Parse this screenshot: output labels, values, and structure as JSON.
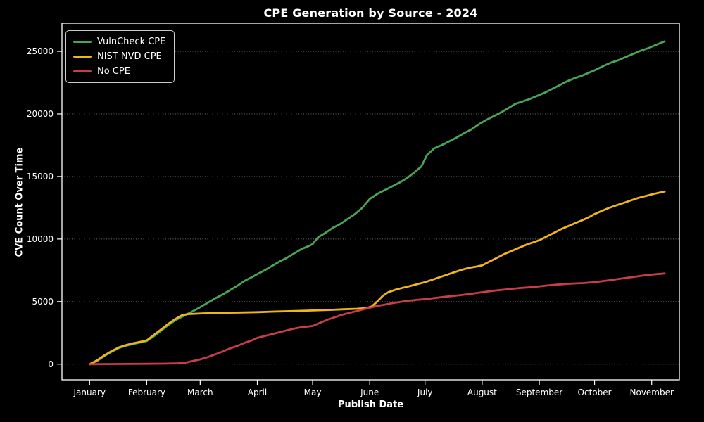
{
  "figure": {
    "background": "#000000",
    "text_color": "#ffffff",
    "spine_color": "#ffffff",
    "grid_color": "rgba(255,255,255,0.45)"
  },
  "chart_data": {
    "type": "line",
    "title": "CPE Generation by Source - 2024",
    "xlabel": "Publish Date",
    "ylabel": "CVE Count Over Time",
    "legend_position": "top-left",
    "grid": "horizontal-dotted",
    "x_unit": "day_of_year_2024",
    "xlim": [
      -15,
      320
    ],
    "ylim": [
      -1250,
      27250
    ],
    "y_ticks": [
      0,
      5000,
      10000,
      15000,
      20000,
      25000
    ],
    "x_ticks": [
      {
        "label": "January",
        "day": 0
      },
      {
        "label": "February",
        "day": 31
      },
      {
        "label": "March",
        "day": 60
      },
      {
        "label": "April",
        "day": 91
      },
      {
        "label": "May",
        "day": 121
      },
      {
        "label": "June",
        "day": 152
      },
      {
        "label": "July",
        "day": 182
      },
      {
        "label": "August",
        "day": 213
      },
      {
        "label": "September",
        "day": 244
      },
      {
        "label": "October",
        "day": 274
      },
      {
        "label": "November",
        "day": 305
      }
    ],
    "series": [
      {
        "name": "VulnCheck CPE",
        "color": "#48a456",
        "final_value": 25800,
        "points": [
          [
            0,
            0
          ],
          [
            4,
            250
          ],
          [
            8,
            650
          ],
          [
            12,
            1000
          ],
          [
            16,
            1300
          ],
          [
            20,
            1480
          ],
          [
            24,
            1620
          ],
          [
            28,
            1750
          ],
          [
            31,
            1850
          ],
          [
            35,
            2250
          ],
          [
            39,
            2700
          ],
          [
            43,
            3150
          ],
          [
            47,
            3550
          ],
          [
            51,
            3850
          ],
          [
            55,
            4150
          ],
          [
            60,
            4550
          ],
          [
            64,
            4900
          ],
          [
            68,
            5250
          ],
          [
            72,
            5550
          ],
          [
            76,
            5900
          ],
          [
            80,
            6250
          ],
          [
            84,
            6650
          ],
          [
            88,
            6950
          ],
          [
            91,
            7200
          ],
          [
            95,
            7500
          ],
          [
            99,
            7850
          ],
          [
            103,
            8200
          ],
          [
            107,
            8500
          ],
          [
            111,
            8850
          ],
          [
            115,
            9200
          ],
          [
            119,
            9450
          ],
          [
            121,
            9600
          ],
          [
            124,
            10150
          ],
          [
            128,
            10500
          ],
          [
            132,
            10900
          ],
          [
            136,
            11200
          ],
          [
            140,
            11600
          ],
          [
            144,
            12000
          ],
          [
            148,
            12500
          ],
          [
            152,
            13200
          ],
          [
            156,
            13600
          ],
          [
            160,
            13900
          ],
          [
            164,
            14200
          ],
          [
            168,
            14500
          ],
          [
            172,
            14850
          ],
          [
            176,
            15300
          ],
          [
            180,
            15800
          ],
          [
            183,
            16700
          ],
          [
            187,
            17250
          ],
          [
            191,
            17500
          ],
          [
            195,
            17800
          ],
          [
            199,
            18100
          ],
          [
            203,
            18450
          ],
          [
            207,
            18750
          ],
          [
            211,
            19150
          ],
          [
            215,
            19500
          ],
          [
            219,
            19800
          ],
          [
            223,
            20100
          ],
          [
            227,
            20450
          ],
          [
            231,
            20800
          ],
          [
            235,
            21000
          ],
          [
            239,
            21200
          ],
          [
            243,
            21450
          ],
          [
            247,
            21700
          ],
          [
            251,
            22000
          ],
          [
            255,
            22300
          ],
          [
            259,
            22600
          ],
          [
            263,
            22850
          ],
          [
            267,
            23050
          ],
          [
            271,
            23300
          ],
          [
            275,
            23550
          ],
          [
            279,
            23850
          ],
          [
            283,
            24100
          ],
          [
            287,
            24300
          ],
          [
            291,
            24550
          ],
          [
            295,
            24800
          ],
          [
            299,
            25050
          ],
          [
            303,
            25250
          ],
          [
            307,
            25500
          ],
          [
            312,
            25800
          ]
        ]
      },
      {
        "name": "NIST NVD CPE",
        "color": "#f0b517",
        "final_value": 13800,
        "points": [
          [
            0,
            0
          ],
          [
            4,
            300
          ],
          [
            8,
            700
          ],
          [
            12,
            1050
          ],
          [
            16,
            1350
          ],
          [
            20,
            1530
          ],
          [
            24,
            1680
          ],
          [
            28,
            1800
          ],
          [
            31,
            1900
          ],
          [
            35,
            2350
          ],
          [
            39,
            2800
          ],
          [
            43,
            3250
          ],
          [
            47,
            3650
          ],
          [
            50,
            3900
          ],
          [
            53,
            4000
          ],
          [
            57,
            4030
          ],
          [
            62,
            4060
          ],
          [
            68,
            4080
          ],
          [
            75,
            4110
          ],
          [
            82,
            4130
          ],
          [
            91,
            4160
          ],
          [
            100,
            4200
          ],
          [
            110,
            4240
          ],
          [
            121,
            4290
          ],
          [
            130,
            4340
          ],
          [
            138,
            4390
          ],
          [
            145,
            4430
          ],
          [
            150,
            4480
          ],
          [
            153,
            4600
          ],
          [
            156,
            5000
          ],
          [
            159,
            5450
          ],
          [
            162,
            5750
          ],
          [
            166,
            5950
          ],
          [
            170,
            6100
          ],
          [
            174,
            6250
          ],
          [
            178,
            6400
          ],
          [
            182,
            6550
          ],
          [
            186,
            6750
          ],
          [
            190,
            6950
          ],
          [
            194,
            7150
          ],
          [
            198,
            7350
          ],
          [
            202,
            7550
          ],
          [
            206,
            7700
          ],
          [
            210,
            7800
          ],
          [
            213,
            7900
          ],
          [
            217,
            8200
          ],
          [
            221,
            8500
          ],
          [
            225,
            8800
          ],
          [
            229,
            9050
          ],
          [
            233,
            9300
          ],
          [
            237,
            9550
          ],
          [
            241,
            9750
          ],
          [
            244,
            9900
          ],
          [
            248,
            10200
          ],
          [
            252,
            10500
          ],
          [
            256,
            10800
          ],
          [
            260,
            11050
          ],
          [
            264,
            11300
          ],
          [
            268,
            11550
          ],
          [
            271,
            11750
          ],
          [
            274,
            12000
          ],
          [
            278,
            12250
          ],
          [
            282,
            12500
          ],
          [
            286,
            12700
          ],
          [
            290,
            12900
          ],
          [
            294,
            13100
          ],
          [
            298,
            13300
          ],
          [
            302,
            13450
          ],
          [
            306,
            13600
          ],
          [
            309,
            13700
          ],
          [
            312,
            13800
          ]
        ]
      },
      {
        "name": "No CPE",
        "color": "#c83e48",
        "final_value": 7250,
        "points": [
          [
            0,
            0
          ],
          [
            10,
            10
          ],
          [
            20,
            20
          ],
          [
            31,
            30
          ],
          [
            40,
            45
          ],
          [
            48,
            70
          ],
          [
            52,
            120
          ],
          [
            56,
            250
          ],
          [
            60,
            380
          ],
          [
            64,
            560
          ],
          [
            68,
            780
          ],
          [
            72,
            1000
          ],
          [
            76,
            1250
          ],
          [
            80,
            1450
          ],
          [
            84,
            1700
          ],
          [
            88,
            1900
          ],
          [
            91,
            2100
          ],
          [
            95,
            2250
          ],
          [
            99,
            2400
          ],
          [
            103,
            2550
          ],
          [
            107,
            2700
          ],
          [
            111,
            2850
          ],
          [
            115,
            2950
          ],
          [
            121,
            3050
          ],
          [
            125,
            3300
          ],
          [
            129,
            3550
          ],
          [
            133,
            3750
          ],
          [
            137,
            3950
          ],
          [
            141,
            4100
          ],
          [
            145,
            4250
          ],
          [
            149,
            4400
          ],
          [
            152,
            4500
          ],
          [
            156,
            4650
          ],
          [
            160,
            4750
          ],
          [
            164,
            4870
          ],
          [
            168,
            4960
          ],
          [
            172,
            5050
          ],
          [
            177,
            5130
          ],
          [
            182,
            5200
          ],
          [
            187,
            5280
          ],
          [
            192,
            5370
          ],
          [
            197,
            5450
          ],
          [
            202,
            5530
          ],
          [
            207,
            5620
          ],
          [
            213,
            5750
          ],
          [
            218,
            5850
          ],
          [
            223,
            5930
          ],
          [
            228,
            6000
          ],
          [
            233,
            6080
          ],
          [
            238,
            6130
          ],
          [
            243,
            6200
          ],
          [
            248,
            6280
          ],
          [
            253,
            6350
          ],
          [
            258,
            6400
          ],
          [
            263,
            6450
          ],
          [
            268,
            6480
          ],
          [
            274,
            6550
          ],
          [
            279,
            6650
          ],
          [
            284,
            6750
          ],
          [
            289,
            6850
          ],
          [
            294,
            6950
          ],
          [
            299,
            7050
          ],
          [
            304,
            7150
          ],
          [
            308,
            7200
          ],
          [
            312,
            7250
          ]
        ]
      }
    ]
  }
}
